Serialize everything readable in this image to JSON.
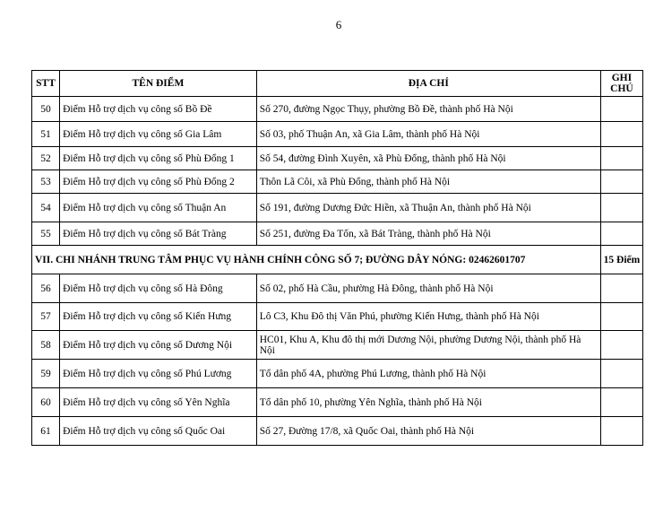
{
  "page_number": "6",
  "headers": {
    "stt": "STT",
    "name": "TÊN ĐIỂM",
    "address": "ĐỊA CHỈ",
    "note": "GHI CHÚ"
  },
  "rows_a": [
    {
      "stt": "50",
      "name": "Điểm Hỗ trợ dịch vụ công số Bồ Đề",
      "address": "Số 270, đường Ngọc Thụy, phường Bồ Đề, thành phố Hà Nội"
    },
    {
      "stt": "51",
      "name": "Điểm Hỗ trợ dịch vụ công số Gia Lâm",
      "address": "Số 03, phố Thuận An, xã Gia Lâm, thành phố Hà Nội"
    },
    {
      "stt": "52",
      "name": "Điểm Hỗ trợ dịch vụ công số Phù Đổng 1",
      "address": "Số 54, đường Đình Xuyên, xã Phù Đổng, thành phố Hà Nội"
    },
    {
      "stt": "53",
      "name": "Điểm Hỗ trợ dịch vụ công số Phù Đổng 2",
      "address": "Thôn Lã Côi, xã Phù Đổng, thành phố Hà Nội"
    },
    {
      "stt": "54",
      "name": "Điểm Hỗ trợ dịch vụ công số Thuận An",
      "address": "Số 191, đường Dương Đức Hiền, xã Thuận An, thành phố Hà Nội"
    },
    {
      "stt": "55",
      "name": "Điểm Hỗ trợ dịch vụ công số Bát Tràng",
      "address": "Số 251, đường Đa Tốn, xã Bát Tràng, thành phố Hà Nội"
    }
  ],
  "section": {
    "title": "VII. CHI NHÁNH TRUNG TÂM PHỤC VỤ HÀNH CHÍNH CÔNG SỐ 7; ĐƯỜNG DÂY NÓNG: 02462601707",
    "count": "15 Điểm"
  },
  "rows_b": [
    {
      "stt": "56",
      "name": "Điểm Hỗ trợ dịch vụ công số Hà Đông",
      "address": "Số 02, phố Hà Cầu, phường Hà Đông, thành phố Hà Nội"
    },
    {
      "stt": "57",
      "name": "Điểm Hỗ trợ dịch vụ công số Kiến Hưng",
      "address": "Lô C3, Khu Đô thị Văn Phú, phường Kiến Hưng, thành phố Hà Nội"
    },
    {
      "stt": "58",
      "name": "Điểm Hỗ trợ dịch vụ công số Dương Nội",
      "address": "HC01, Khu A, Khu đô thị mới Dương Nội, phường Dương Nội, thành phố Hà Nội"
    },
    {
      "stt": "59",
      "name": "Điểm Hỗ trợ dịch vụ công số Phú Lương",
      "address": "Tổ dân phố 4A, phường Phú Lương, thành phố Hà Nội"
    },
    {
      "stt": "60",
      "name": "Điểm Hỗ trợ dịch vụ công số Yên Nghĩa",
      "address": "Tổ dân phố 10, phường Yên Nghĩa, thành phố Hà Nội"
    },
    {
      "stt": "61",
      "name": "Điểm Hỗ trợ dịch vụ công số Quốc Oai",
      "address": "Số 27, Đường 17/8, xã Quốc Oai, thành phố Hà Nội"
    }
  ]
}
